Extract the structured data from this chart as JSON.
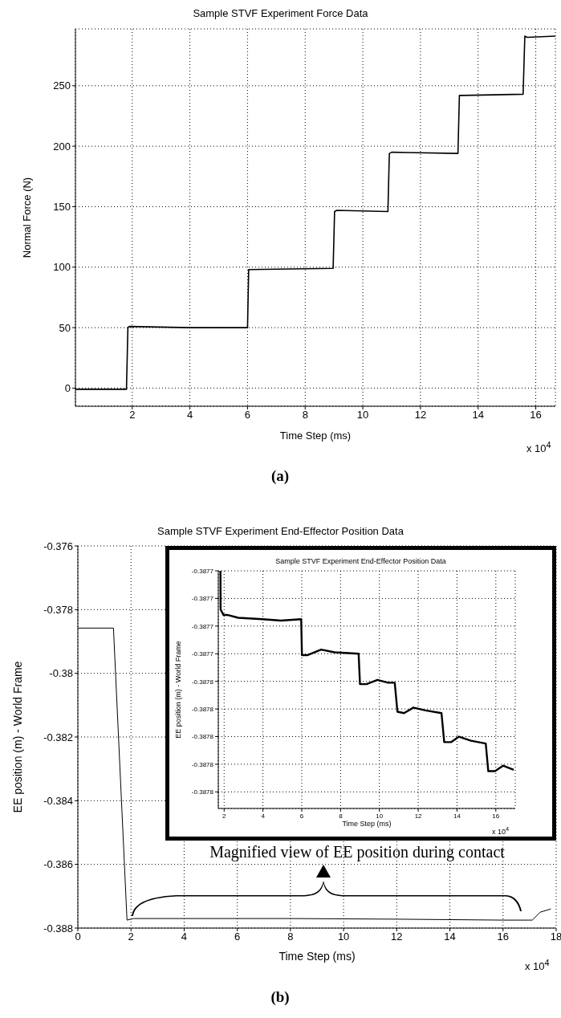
{
  "chart_data": [
    {
      "type": "line",
      "title": "Sample STVF Experiment Force Data",
      "xlabel": "Time Step (ms)",
      "ylabel": "Normal Force (N)",
      "xlim": [
        0.03,
        16.68
      ],
      "xticks": [
        2,
        4,
        6,
        8,
        10,
        12,
        14,
        16
      ],
      "ylim": [
        -15,
        297
      ],
      "yticks": [
        0,
        50,
        100,
        150,
        200,
        250
      ],
      "grid": true,
      "series": [
        {
          "color": "#000000",
          "x": [
            0.03,
            1.8,
            1.85,
            1.9,
            4,
            6,
            6.04,
            6.1,
            8.97,
            9.02,
            9.1,
            10.87,
            10.92,
            11,
            13.3,
            13.35,
            13.45,
            15.56,
            15.62,
            15.7,
            16.68
          ],
          "values": [
            -1,
            -1,
            50,
            51,
            50,
            50,
            98,
            98,
            99,
            146,
            147,
            146,
            194,
            195,
            194,
            242,
            242,
            243,
            291,
            290,
            291
          ]
        }
      ],
      "annotations": [
        "x 10$^{4}$",
        "(a)"
      ]
    },
    {
      "type": "line",
      "title": "Sample STVF Experiment End-Effector Position Data",
      "xlabel": "Time Step (ms)",
      "ylabel": "EE position (m) - World Frame",
      "xlim": [
        0,
        18
      ],
      "xticks": [
        0,
        2,
        4,
        6,
        8,
        10,
        12,
        14,
        16,
        18
      ],
      "ylim": [
        -0.388,
        -0.376
      ],
      "yticks": [
        -0.388,
        -0.386,
        -0.384,
        -0.382,
        -0.38,
        -0.378,
        -0.376
      ],
      "grid": true,
      "series": [
        {
          "color": "#000000",
          "x": [
            0,
            1.34,
            1.85,
            2.1,
            4,
            8,
            12,
            16,
            17.1,
            17.4,
            17.8
          ],
          "values": [
            -0.37858,
            -0.37858,
            -0.38775,
            -0.3877,
            -0.3877,
            -0.3877,
            -0.38772,
            -0.38775,
            -0.38775,
            -0.3875,
            -0.3874
          ]
        }
      ],
      "annotations": [
        "x 10$^{4}$",
        "Magnified view of EE position during contact",
        "(b)"
      ]
    },
    {
      "type": "line",
      "title": "Sample STVF Experiment End-Effector Position Data",
      "xlabel": "Time Step (ms)",
      "ylabel": "EE position (m) - World Frame",
      "xlim": [
        1.7,
        17.0
      ],
      "xticks": [
        2,
        4,
        6,
        8,
        10,
        12,
        14,
        16
      ],
      "ylim": [
        -0.387852,
        -0.38768
      ],
      "yticks": [
        {
          "value": -0.38784,
          "label": "-0.3878"
        },
        {
          "value": -0.38782,
          "label": "-0.3878"
        },
        {
          "value": -0.3878,
          "label": "-0.3878"
        },
        {
          "value": -0.38778,
          "label": "-0.3878"
        },
        {
          "value": -0.38776,
          "label": "-0.3878"
        },
        {
          "value": -0.38774,
          "label": "-0.3877"
        },
        {
          "value": -0.38772,
          "label": "-0.3877"
        },
        {
          "value": -0.3877,
          "label": "-0.3877"
        },
        {
          "value": -0.38768,
          "label": "-0.3877"
        }
      ],
      "grid": true,
      "series": [
        {
          "color": "#000000",
          "x": [
            1.81,
            1.82,
            1.97,
            2.2,
            2.73,
            3.97,
            4.93,
            5.97,
            6.01,
            6.31,
            7.0,
            7.69,
            8.93,
            9.0,
            9.34,
            9.9,
            10.45,
            10.79,
            10.93,
            11.27,
            11.75,
            12.38,
            13.2,
            13.34,
            13.69,
            14.1,
            14.72,
            15.48,
            15.61,
            15.96,
            16.37,
            16.92
          ],
          "values": [
            -0.38768,
            -0.387708,
            -0.387712,
            -0.387712,
            -0.387714,
            -0.387715,
            -0.387716,
            -0.387715,
            -0.387741,
            -0.387741,
            -0.387737,
            -0.387739,
            -0.38774,
            -0.387762,
            -0.387762,
            -0.387759,
            -0.387761,
            -0.387761,
            -0.387782,
            -0.387783,
            -0.387779,
            -0.387781,
            -0.387783,
            -0.387804,
            -0.387804,
            -0.3878,
            -0.387803,
            -0.387805,
            -0.387825,
            -0.387825,
            -0.387821,
            -0.387824
          ]
        }
      ],
      "annotations": [
        "x 10$^{4}$"
      ]
    }
  ]
}
